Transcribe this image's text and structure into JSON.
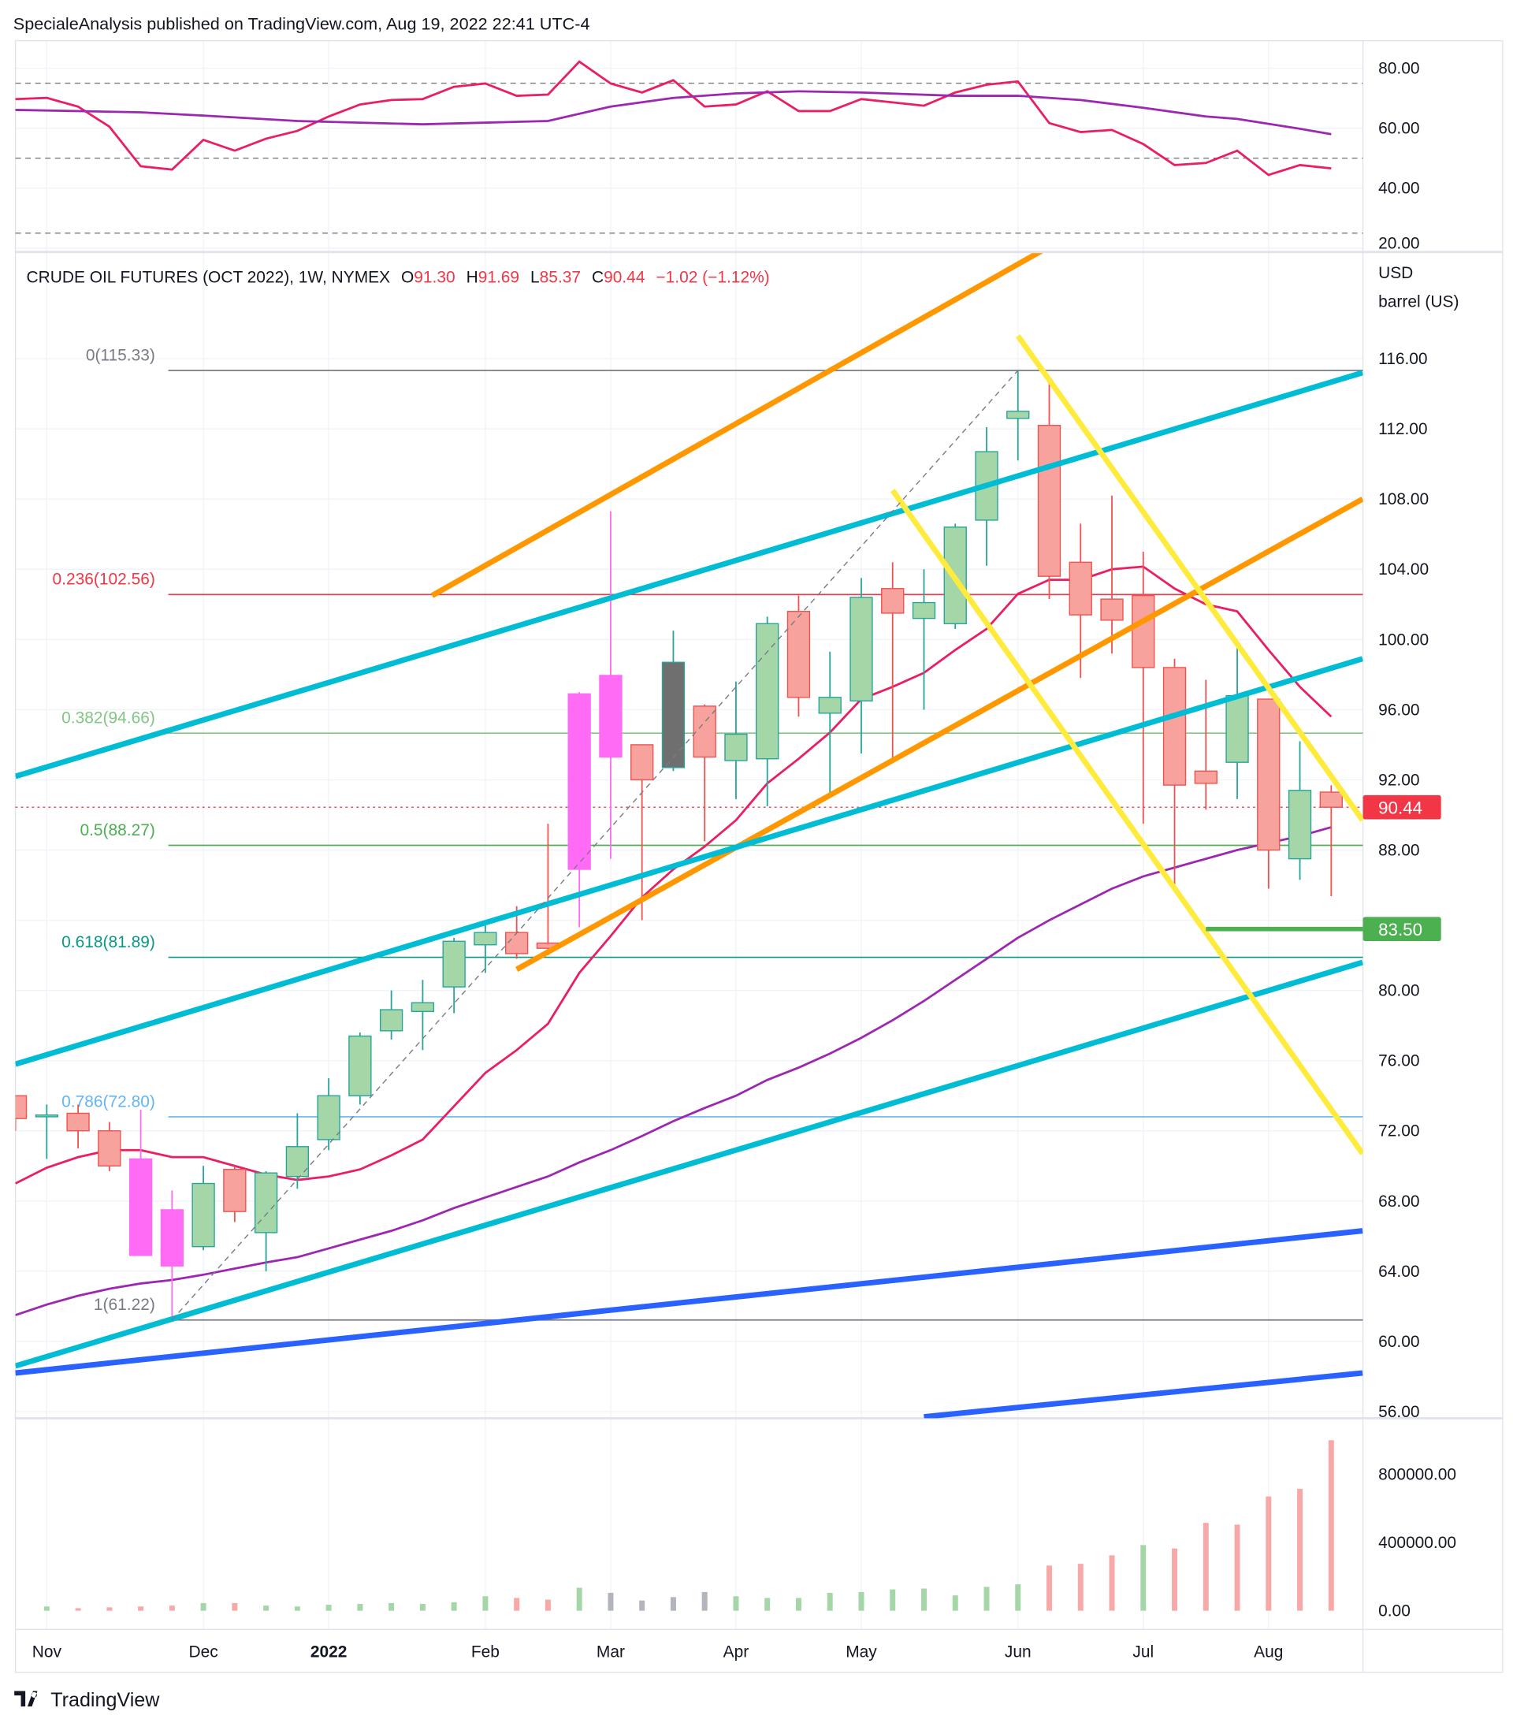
{
  "header": {
    "publisher": "SpecialeAnalysis published on TradingView.com, Aug 19, 2022 22:41 UTC-4"
  },
  "legend": {
    "symbol": "CRUDE OIL FUTURES (OCT 2022), 1W, NYMEX",
    "o_label": "O",
    "o": "91.30",
    "h_label": "H",
    "h": "91.69",
    "l_label": "L",
    "l": "85.37",
    "c_label": "C",
    "c": "90.44",
    "change": "−1.02 (−1.12%)"
  },
  "axis": {
    "currency": "USD",
    "unit": "barrel (US)"
  },
  "footer": {
    "logo": "TradingView"
  },
  "colors": {
    "up_fill": "#a5d6a7",
    "up_border": "#26a69a",
    "down_fill": "#f7a29d",
    "down_border": "#ef5350",
    "magenta": "#ff6bf5",
    "gray": "#6f6f6f",
    "ma_red": "#e91e63",
    "ma_purple": "#9c27b0"
  },
  "chart_data": [
    {
      "type": "line",
      "title": "RSI",
      "ylim": [
        20,
        85
      ],
      "yticks": [
        "80.00",
        "60.00",
        "40.00",
        "20.00"
      ],
      "ytick_values": [
        80,
        60,
        40,
        20
      ],
      "levels": [
        75,
        50,
        25
      ],
      "series": [
        {
          "name": "RSI",
          "values": [
            69.7,
            70.1,
            67.2,
            60.5,
            47.3,
            46.2,
            56.1,
            52.5,
            56.5,
            59.1,
            63.9,
            67.9,
            69.4,
            69.7,
            73.8,
            74.9,
            70.8,
            71.2,
            82.2,
            74.9,
            71.9,
            76.0,
            67.2,
            67.9,
            72.3,
            65.7,
            65.7,
            69.7,
            68.6,
            67.5,
            71.9,
            74.5,
            75.6,
            61.7,
            58.7,
            59.4,
            54.7,
            47.7,
            48.4,
            52.5,
            44.4,
            47.7,
            46.6
          ]
        },
        {
          "name": "RSI MA",
          "points": [
            [
              0,
              66.1
            ],
            [
              4,
              65.3
            ],
            [
              6,
              64.2
            ],
            [
              9,
              62.4
            ],
            [
              13,
              61.3
            ],
            [
              17,
              62.4
            ],
            [
              19,
              67.2
            ],
            [
              21,
              70.1
            ],
            [
              23,
              71.6
            ],
            [
              25,
              72.3
            ],
            [
              27,
              71.9
            ],
            [
              30,
              70.8
            ],
            [
              32,
              70.8
            ],
            [
              34,
              69.4
            ],
            [
              36,
              66.8
            ],
            [
              38,
              63.9
            ],
            [
              39,
              63.1
            ],
            [
              41,
              59.8
            ],
            [
              42,
              58.0
            ]
          ]
        }
      ]
    },
    {
      "type": "candlestick",
      "title": "CRUDE OIL FUTURES (OCT 2022), 1W, NYMEX",
      "ylabel": "USD barrel (US)",
      "ylim": [
        55,
        120
      ],
      "yticks": [
        "116.00",
        "112.00",
        "108.00",
        "104.00",
        "100.00",
        "96.00",
        "92.00",
        "88.00",
        "84.00",
        "80.00",
        "76.00",
        "72.00",
        "68.00",
        "64.00",
        "60.00",
        "56.00"
      ],
      "ytick_values": [
        116,
        112,
        108,
        104,
        100,
        96,
        92,
        88,
        84,
        80,
        76,
        72,
        68,
        64,
        60,
        56
      ],
      "xticks": [
        {
          "label": "Nov",
          "index": 1
        },
        {
          "label": "Dec",
          "index": 6
        },
        {
          "label": "2022",
          "index": 10
        },
        {
          "label": "Feb",
          "index": 15
        },
        {
          "label": "Mar",
          "index": 19
        },
        {
          "label": "Apr",
          "index": 23
        },
        {
          "label": "May",
          "index": 27
        },
        {
          "label": "Jun",
          "index": 32
        },
        {
          "label": "Jul",
          "index": 36
        },
        {
          "label": "Aug",
          "index": 40
        }
      ],
      "candles": [
        [
          74,
          74,
          72,
          72.7,
          "down"
        ],
        [
          72.8,
          73.5,
          70.4,
          72.9,
          "up"
        ],
        [
          73,
          73.5,
          71,
          72,
          "down"
        ],
        [
          72,
          72.5,
          69.7,
          70,
          "down"
        ],
        [
          70.4,
          73.2,
          64.9,
          64.9,
          "magenta"
        ],
        [
          67.5,
          68.6,
          61.3,
          64.3,
          "magenta"
        ],
        [
          65.4,
          70,
          65.2,
          69,
          "up"
        ],
        [
          69.8,
          70,
          66.8,
          67.4,
          "down"
        ],
        [
          66.2,
          69.7,
          64,
          69.6,
          "up"
        ],
        [
          69.4,
          73,
          68.7,
          71.1,
          "up"
        ],
        [
          71.5,
          75,
          70.9,
          74,
          "up"
        ],
        [
          74,
          77.6,
          73.5,
          77.4,
          "up"
        ],
        [
          77.7,
          80,
          77.2,
          78.9,
          "up"
        ],
        [
          78.8,
          80.6,
          76.6,
          79.3,
          "up"
        ],
        [
          80.2,
          83,
          78.7,
          82.8,
          "up"
        ],
        [
          82.6,
          84,
          81,
          83.3,
          "up"
        ],
        [
          83.3,
          84.8,
          81.8,
          82.1,
          "down"
        ],
        [
          82.7,
          89.5,
          82,
          82.4,
          "down"
        ],
        [
          86.9,
          97,
          83.6,
          96.9,
          "magenta"
        ],
        [
          97.95,
          107.3,
          87.5,
          93.3,
          "magenta"
        ],
        [
          94,
          94,
          84,
          92,
          "down"
        ],
        [
          92.7,
          100.5,
          92.5,
          98.7,
          "gray"
        ],
        [
          96.2,
          96.3,
          88.5,
          93.3,
          "down"
        ],
        [
          93.1,
          97.6,
          90.9,
          94.6,
          "up"
        ],
        [
          93.2,
          101.3,
          90.5,
          100.9,
          "up"
        ],
        [
          101.6,
          102.5,
          95.6,
          96.7,
          "down"
        ],
        [
          95.8,
          99.3,
          91.2,
          96.7,
          "up"
        ],
        [
          96.5,
          103.5,
          93.5,
          102.4,
          "up"
        ],
        [
          102.9,
          104.4,
          93,
          101.5,
          "down"
        ],
        [
          101.2,
          104,
          96,
          102.1,
          "up"
        ],
        [
          100.9,
          106.6,
          100.6,
          106.4,
          "up"
        ],
        [
          106.8,
          112.1,
          104.2,
          110.7,
          "up"
        ],
        [
          112.6,
          115.3,
          110.2,
          113,
          "up"
        ],
        [
          112.2,
          114.9,
          102.3,
          103.6,
          "down"
        ],
        [
          104.4,
          106.6,
          97.8,
          101.4,
          "down"
        ],
        [
          102.3,
          108.2,
          99.2,
          101.1,
          "down"
        ],
        [
          102.5,
          105,
          89.5,
          98.4,
          "down"
        ],
        [
          98.4,
          98.9,
          85.9,
          91.7,
          "down"
        ],
        [
          92.5,
          97.7,
          90.3,
          91.8,
          "down"
        ],
        [
          93,
          99.9,
          90.9,
          96.8,
          "up"
        ],
        [
          96.6,
          96.6,
          85.8,
          88,
          "down"
        ],
        [
          87.5,
          94.2,
          86.3,
          91.4,
          "up"
        ],
        [
          91.3,
          91.69,
          85.37,
          90.44,
          "down"
        ]
      ],
      "ma_fast": [
        69.0,
        69.9,
        70.5,
        70.9,
        70.9,
        70.5,
        70.5,
        70.0,
        69.5,
        69.2,
        69.4,
        69.8,
        70.6,
        71.5,
        73.4,
        75.3,
        76.6,
        78.1,
        81.0,
        83.1,
        85.3,
        86.9,
        88.2,
        89.7,
        91.8,
        93.2,
        94.7,
        96.6,
        97.3,
        98.1,
        99.4,
        100.6,
        102.6,
        103.4,
        103.4,
        104.0,
        104.15,
        102.9,
        102.0,
        101.6,
        99.4,
        97.3,
        95.6
      ],
      "ma_slow": [
        61.5,
        62.1,
        62.6,
        63.0,
        63.3,
        63.5,
        63.8,
        64.15,
        64.5,
        64.8,
        65.3,
        65.8,
        66.3,
        66.9,
        67.6,
        68.2,
        68.8,
        69.4,
        70.2,
        70.9,
        71.7,
        72.55,
        73.3,
        74.0,
        74.9,
        75.6,
        76.4,
        77.3,
        78.3,
        79.4,
        80.6,
        81.8,
        83.0,
        84.0,
        84.9,
        85.8,
        86.5,
        87.0,
        87.5,
        88.0,
        88.4,
        88.8,
        89.3
      ],
      "fib_levels": [
        {
          "label": "0(115.33)",
          "value": 115.33,
          "color": "#787b86"
        },
        {
          "label": "0.236(102.56)",
          "value": 102.56,
          "color": "#f23645"
        },
        {
          "label": "0.382(94.66)",
          "value": 94.66,
          "color": "#81c784"
        },
        {
          "label": "0.5(88.27)",
          "value": 88.27,
          "color": "#4caf50"
        },
        {
          "label": "0.618(81.89)",
          "value": 81.89,
          "color": "#089981"
        },
        {
          "label": "0.786(72.80)",
          "value": 72.8,
          "color": "#64b5f6"
        },
        {
          "label": "1(61.22)",
          "value": 61.22,
          "color": "#787b86"
        }
      ],
      "last_price": {
        "label": "90.44",
        "value": 90.44,
        "color": "#f23645"
      },
      "support": {
        "label": "83.50",
        "value": 83.5,
        "color": "#4caf50",
        "from_index": 38
      },
      "trendlines": [
        {
          "name": "orange-upper",
          "color": "#ff9800",
          "from": [
            13.3,
            102.5
          ],
          "to": [
            33.8,
            123.2
          ]
        },
        {
          "name": "orange-lower",
          "color": "#ff9800",
          "from": [
            16,
            81.2
          ],
          "to": [
            43,
            108.0
          ]
        },
        {
          "name": "teal-upper",
          "color": "#00bcd4",
          "from": [
            0,
            92.2
          ],
          "to": [
            43,
            115.2
          ]
        },
        {
          "name": "teal-middle",
          "color": "#00bcd4",
          "from": [
            0,
            75.8
          ],
          "to": [
            43,
            98.9
          ]
        },
        {
          "name": "teal-lower",
          "color": "#00bcd4",
          "from": [
            0,
            58.6
          ],
          "to": [
            43,
            81.6
          ]
        },
        {
          "name": "blue-upper",
          "color": "#2962ff",
          "from": [
            0,
            58.2
          ],
          "to": [
            43,
            66.3
          ]
        },
        {
          "name": "blue-lower",
          "color": "#2962ff",
          "from": [
            29,
            55.7
          ],
          "to": [
            43,
            58.2
          ]
        },
        {
          "name": "yellow-left",
          "color": "#ffeb3b",
          "from": [
            28,
            108.5
          ],
          "to": [
            43,
            70.7
          ]
        },
        {
          "name": "yellow-right",
          "color": "#ffeb3b",
          "from": [
            32,
            117.3
          ],
          "to": [
            43,
            89.7
          ]
        },
        {
          "name": "fib-trend",
          "color": "#787b86",
          "from": [
            5,
            61.22
          ],
          "to": [
            32,
            115.33
          ]
        }
      ]
    },
    {
      "type": "bar",
      "title": "Volume",
      "ylim": [
        0,
        1100000
      ],
      "yticks": [
        "800000.00",
        "400000.00",
        "0.00"
      ],
      "ytick_values": [
        800000,
        400000,
        0
      ],
      "values": [
        0,
        25000,
        15000,
        20000,
        25000,
        30000,
        45000,
        45000,
        30000,
        25000,
        35000,
        40000,
        45000,
        40000,
        50000,
        85000,
        75000,
        65000,
        135000,
        105000,
        60000,
        80000,
        110000,
        85000,
        75000,
        75000,
        105000,
        110000,
        125000,
        130000,
        90000,
        140000,
        155000,
        265000,
        275000,
        325000,
        385000,
        365000,
        515000,
        505000,
        670000,
        715000,
        1000000
      ],
      "colors": [
        "down",
        "up",
        "down",
        "down",
        "down",
        "down",
        "up",
        "down",
        "up",
        "up",
        "up",
        "up",
        "up",
        "up",
        "up",
        "up",
        "down",
        "down",
        "up",
        "gray",
        "gray",
        "gray",
        "gray",
        "up",
        "up",
        "up",
        "up",
        "up",
        "up",
        "up",
        "up",
        "up",
        "up",
        "down",
        "down",
        "down",
        "up",
        "down",
        "down",
        "down",
        "down",
        "down",
        "down"
      ]
    }
  ]
}
